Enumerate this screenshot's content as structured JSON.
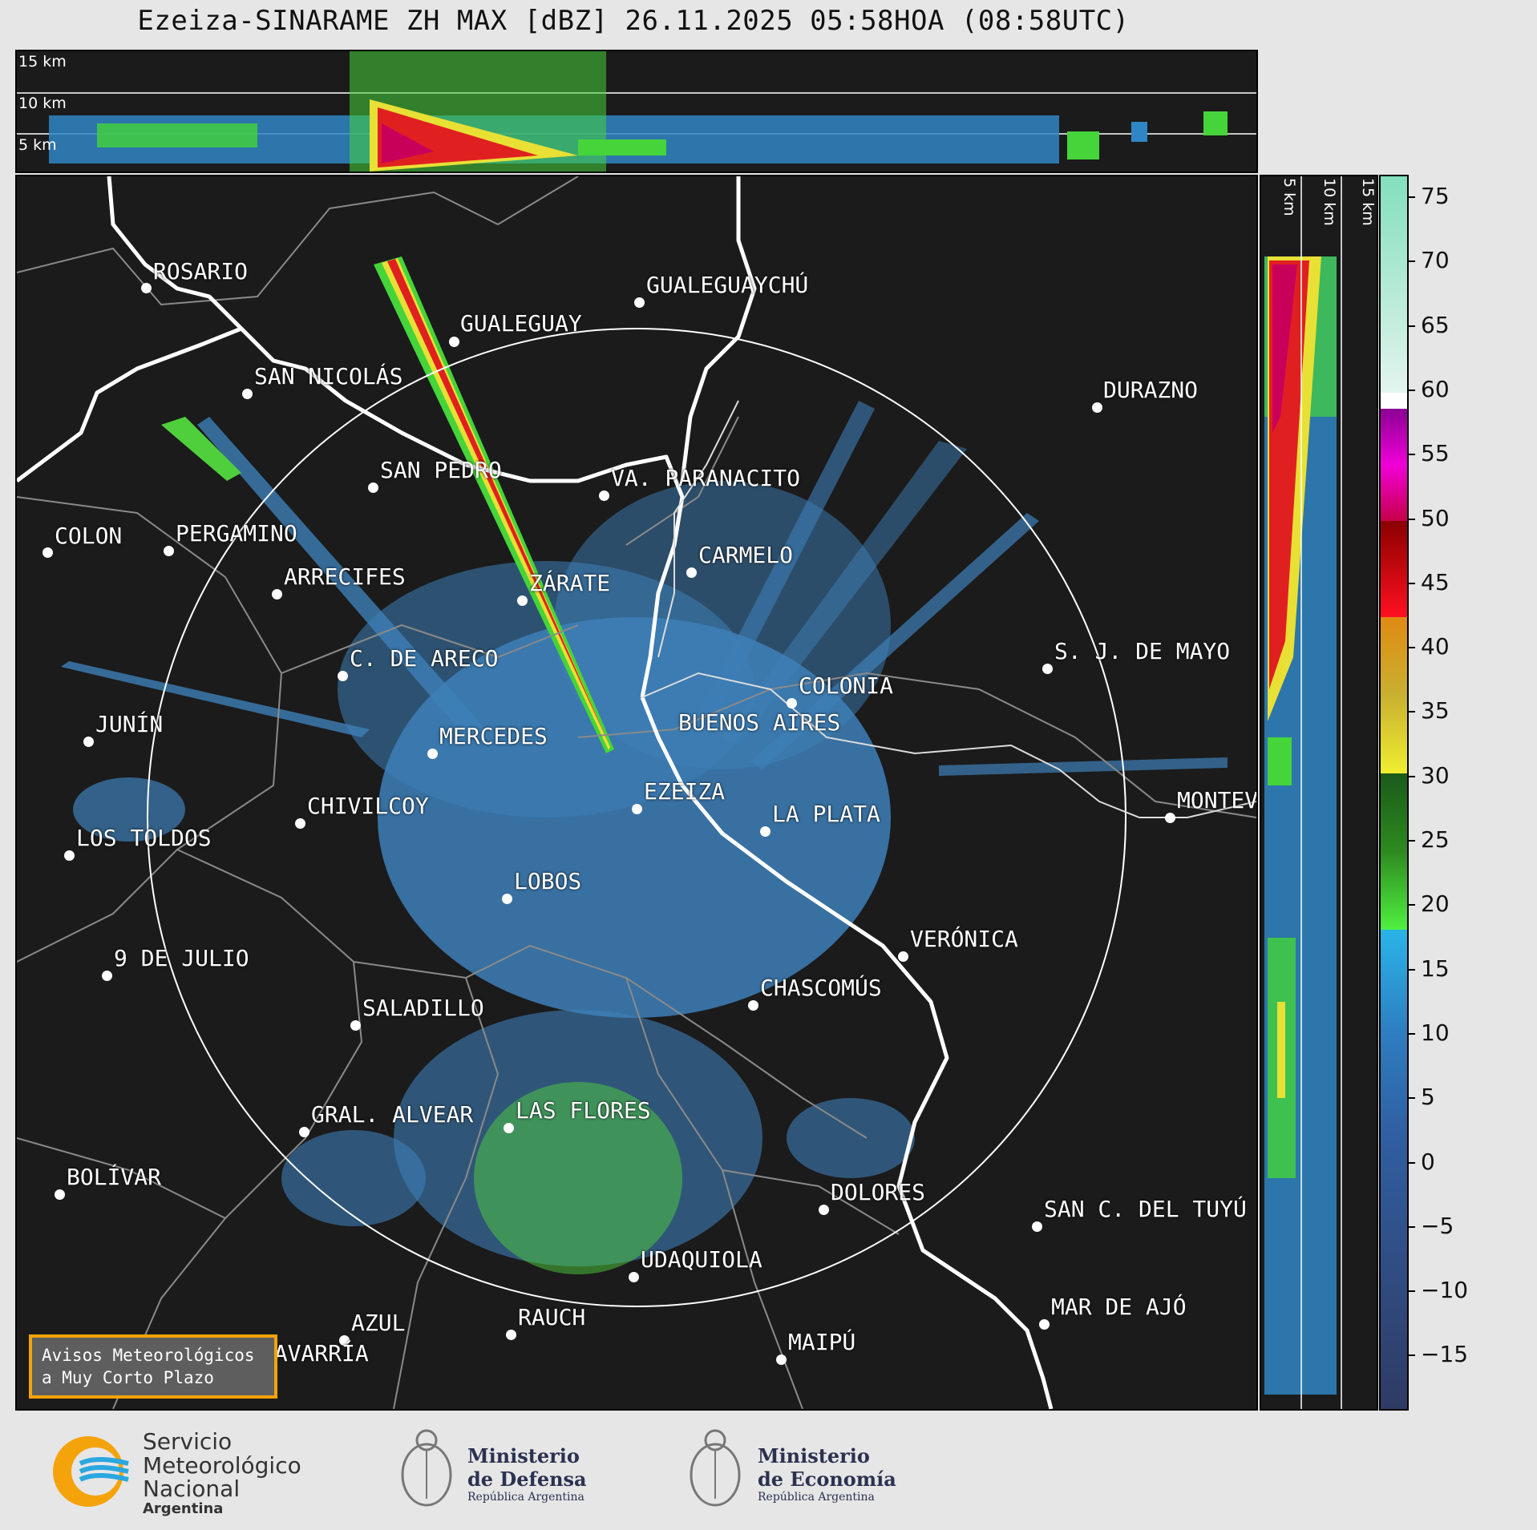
{
  "title": "Ezeiza-SINARAME ZH MAX [dBZ] 26.11.2025 05:58HOA (08:58UTC)",
  "top_panel": {
    "km_labels": [
      "15 km",
      "10 km",
      "5 km"
    ]
  },
  "side_panel": {
    "km_labels": [
      "5 km",
      "10 km",
      "15 km"
    ]
  },
  "colorbar": {
    "unit": "dBZ",
    "ticks": [
      "75",
      "70",
      "65",
      "60",
      "55",
      "50",
      "45",
      "40",
      "35",
      "30",
      "25",
      "20",
      "15",
      "10",
      "5",
      "0",
      "−5",
      "−10",
      "−15"
    ],
    "range": [
      -20,
      77
    ]
  },
  "cities": [
    {
      "name": "ROSARIO"
    },
    {
      "name": "GUALEGUAYCHÚ"
    },
    {
      "name": "GUALEGUAY"
    },
    {
      "name": "SAN NICOLÁS"
    },
    {
      "name": "DURAZNO"
    },
    {
      "name": "SAN PEDRO"
    },
    {
      "name": "VA. PARANACITO"
    },
    {
      "name": "COLON"
    },
    {
      "name": "PERGAMINO"
    },
    {
      "name": "CARMELO"
    },
    {
      "name": "ARRECIFES"
    },
    {
      "name": "ZÁRATE"
    },
    {
      "name": "S. J. DE MAYO"
    },
    {
      "name": "C. DE ARECO"
    },
    {
      "name": "COLONIA"
    },
    {
      "name": "JUNÍN"
    },
    {
      "name": "BUENOS AIRES"
    },
    {
      "name": "MERCEDES"
    },
    {
      "name": "EZEIZA"
    },
    {
      "name": "MONTEVIDEO"
    },
    {
      "name": "CHIVILCOY"
    },
    {
      "name": "LA PLATA"
    },
    {
      "name": "LOS TOLDOS"
    },
    {
      "name": "LOBOS"
    },
    {
      "name": "VERÓNICA"
    },
    {
      "name": "9 DE JULIO"
    },
    {
      "name": "CHASCOMÚS"
    },
    {
      "name": "SALADILLO"
    },
    {
      "name": "GRAL. ALVEAR"
    },
    {
      "name": "LAS FLORES"
    },
    {
      "name": "BOLÍVAR"
    },
    {
      "name": "DOLORES"
    },
    {
      "name": "SAN C. DEL TUYÚ"
    },
    {
      "name": "UDAQUIOLA"
    },
    {
      "name": "MAR DE AJÓ"
    },
    {
      "name": "RAUCH"
    },
    {
      "name": "AZUL"
    },
    {
      "name": "OLAVARRÍA"
    },
    {
      "name": "MAIPÚ"
    }
  ],
  "avisos": {
    "line1": "Avisos Meteorológicos",
    "line2": "a Muy Corto Plazo"
  },
  "logos": {
    "smn": {
      "line1": "Servicio",
      "line2": "Meteorológico",
      "line3": "Nacional",
      "line4": "Argentina"
    },
    "defensa": {
      "line1": "Ministerio",
      "line2": "de Defensa",
      "line3": "República Argentina"
    },
    "economia": {
      "line1": "Ministerio",
      "line2": "de Economía",
      "line3": "República Argentina"
    }
  },
  "colors": {
    "background": "#1b1b1b",
    "range_ring": "#ffffff",
    "coast": "#ffffff",
    "borders": "#8a8a8a",
    "echo": "#3d7fb8",
    "accent": "#f5a30a"
  }
}
